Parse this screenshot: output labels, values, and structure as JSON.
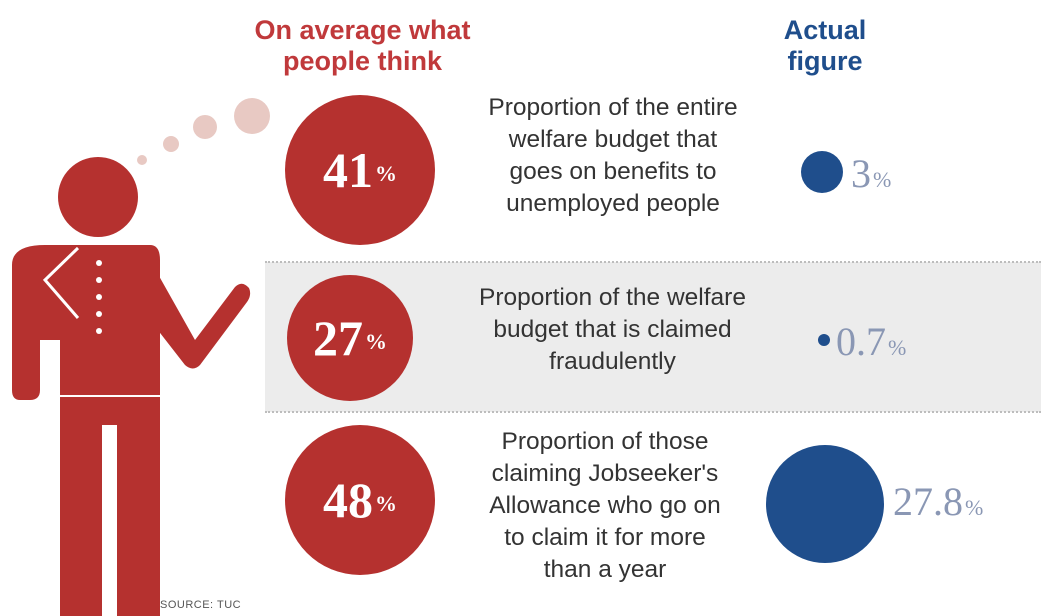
{
  "header": {
    "people_think": "On average what\npeople think",
    "actual_figure": "Actual\nfigure"
  },
  "source": "SOURCE: TUC",
  "colors": {
    "perceived": "#b5312f",
    "actual": "#1f4e8c",
    "figure": "#b5312f",
    "row_highlight": "#ececec"
  },
  "chart_data": {
    "type": "table",
    "columns": [
      "On average what people think",
      "Actual figure"
    ],
    "rows": [
      {
        "label": "Proportion of the entire\nwelfare budget that\ngoes on benefits to\nunemployed people",
        "perceived_num": "41",
        "perceived_unit": "%",
        "actual_num": "3",
        "actual_unit": "%",
        "perceived_value": 41,
        "actual_value": 3
      },
      {
        "label": "Proportion of the welfare\nbudget that is claimed\nfraudulently",
        "perceived_num": "27",
        "perceived_unit": "%",
        "actual_num": "0.7",
        "actual_unit": "%",
        "perceived_value": 27,
        "actual_value": 0.7
      },
      {
        "label": "Proportion of those\nclaiming Jobseeker's\nAllowance who go on\nto claim it for more\nthan a year",
        "perceived_num": "48",
        "perceived_unit": "%",
        "actual_num": "27.8",
        "actual_unit": "%",
        "perceived_value": 48,
        "actual_value": 27.8
      }
    ]
  }
}
